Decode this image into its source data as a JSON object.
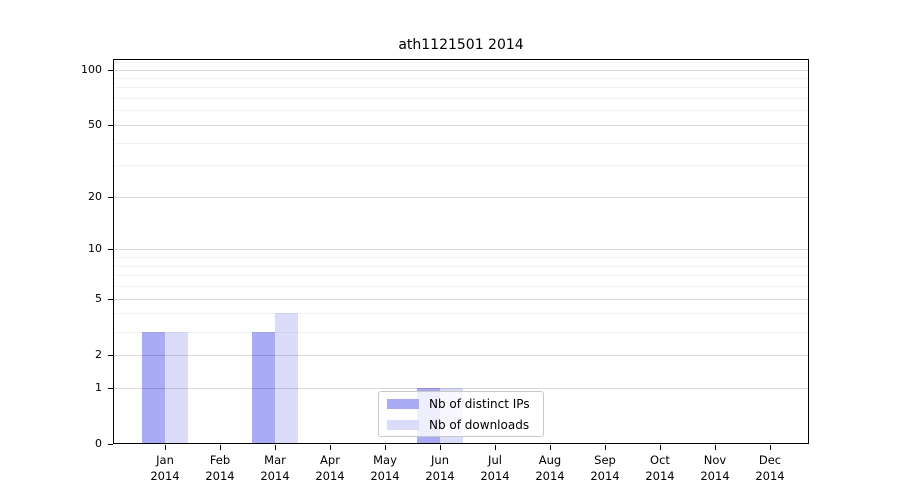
{
  "title": "ath1121501 2014",
  "legend": {
    "items": [
      {
        "label": "Nb of distinct IPs",
        "color": "#a9abf5"
      },
      {
        "label": "Nb of downloads",
        "color": "#dbdcf9"
      }
    ]
  },
  "y_axis": {
    "tick_labels": [
      "100",
      "50",
      "20",
      "10",
      "5",
      "2",
      "1",
      "0"
    ]
  },
  "x_axis": {
    "year": "2014",
    "months": [
      "Jan",
      "Feb",
      "Mar",
      "Apr",
      "May",
      "Jun",
      "Jul",
      "Aug",
      "Sep",
      "Oct",
      "Nov",
      "Dec"
    ]
  },
  "chart_data": {
    "type": "bar",
    "title": "ath1121501 2014",
    "categories": [
      "Jan 2014",
      "Feb 2014",
      "Mar 2014",
      "Apr 2014",
      "May 2014",
      "Jun 2014",
      "Jul 2014",
      "Aug 2014",
      "Sep 2014",
      "Oct 2014",
      "Nov 2014",
      "Dec 2014"
    ],
    "series": [
      {
        "name": "Nb of distinct IPs",
        "color": "#a9abf5",
        "values": [
          3,
          0,
          3,
          0,
          0,
          1,
          0,
          0,
          0,
          0,
          0,
          0
        ]
      },
      {
        "name": "Nb of downloads",
        "color": "#dbdcf9",
        "values": [
          3,
          0,
          4,
          0,
          0,
          1,
          0,
          0,
          0,
          0,
          0,
          0
        ]
      }
    ],
    "xlabel": "",
    "ylabel": "",
    "yscale": "log1p",
    "major_yticks": [
      0,
      1,
      2,
      5,
      10,
      20,
      50,
      100
    ],
    "minor_yticks": [
      3,
      4,
      6,
      7,
      8,
      9,
      30,
      40,
      60,
      70,
      80,
      90,
      110
    ],
    "ylim": [
      0,
      114
    ],
    "grid": true,
    "legend_position": "lower center"
  }
}
